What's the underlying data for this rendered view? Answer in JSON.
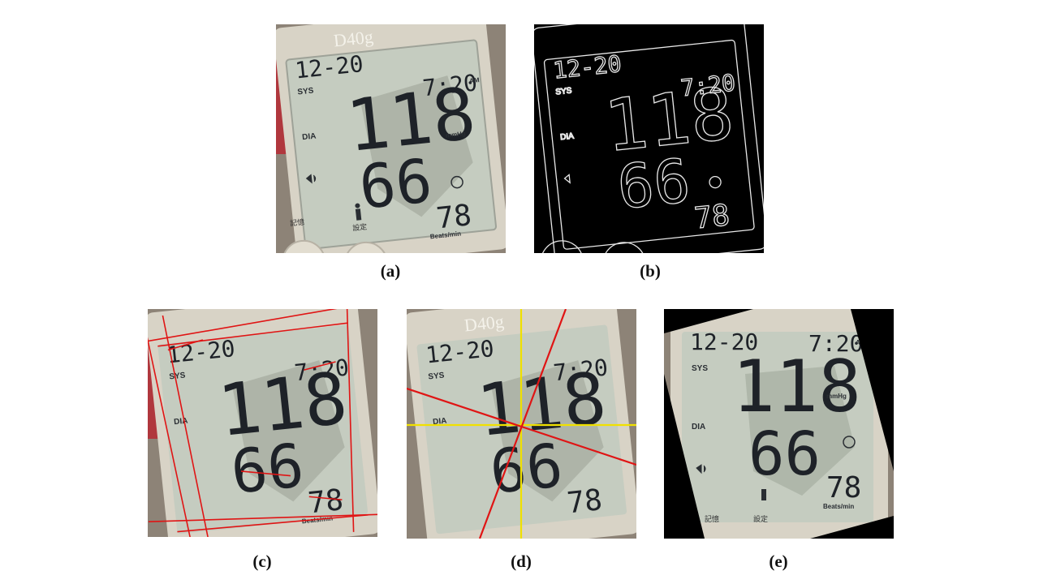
{
  "lcd": {
    "date": "12-20",
    "time": "7:20",
    "ampm": "AM",
    "sys_label": "SYS",
    "dia_label": "DIA",
    "systolic": "118",
    "diastolic": "66",
    "unit": "mmHg",
    "pulse": "78",
    "pulse_unit": "Beats/min",
    "model": "D40g",
    "button_left": "記憶",
    "button_right": "設定"
  },
  "captions": {
    "a": "(a)",
    "b": "(b)",
    "c": "(c)",
    "d": "(d)",
    "e": "(e)"
  },
  "colors": {
    "lcd": "#c5ccc0",
    "bezel": "#d8d3c6",
    "segment": "#1e2228",
    "detected_line": "#e01414",
    "axis_line": "#f0e000",
    "edge": "#e8e8e8",
    "background_black": "#000000"
  }
}
